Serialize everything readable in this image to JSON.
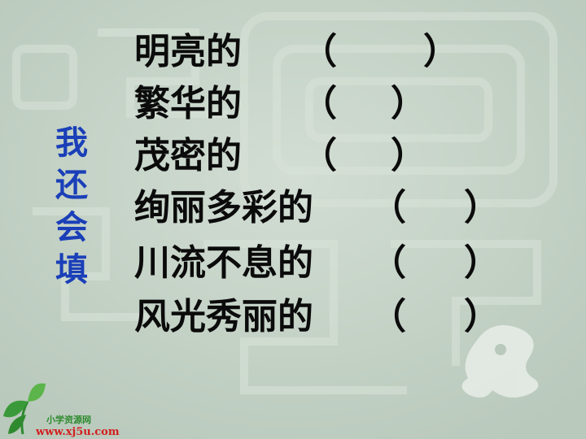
{
  "side_title": [
    "我",
    "还",
    "会",
    "填"
  ],
  "lines": [
    {
      "text": "明亮的",
      "open": "（",
      "close": "）"
    },
    {
      "text": "繁华的",
      "open": "（",
      "close": "）"
    },
    {
      "text": "茂密的",
      "open": "（",
      "close": "）"
    },
    {
      "text": "绚丽多彩的",
      "open": "（",
      "close": "）"
    },
    {
      "text": "川流不息的",
      "open": "（",
      "close": "）"
    },
    {
      "text": "风光秀丽的",
      "open": "（",
      "close": "）"
    }
  ],
  "logo": {
    "site_name": "小学资源网",
    "url": "www.xj5u.com"
  },
  "colors": {
    "background": "#c6d4c8",
    "title": "#1a3fb8",
    "text": "#0b0b0b",
    "url": "#d21f1f",
    "leaf": "#2f8a2f"
  }
}
